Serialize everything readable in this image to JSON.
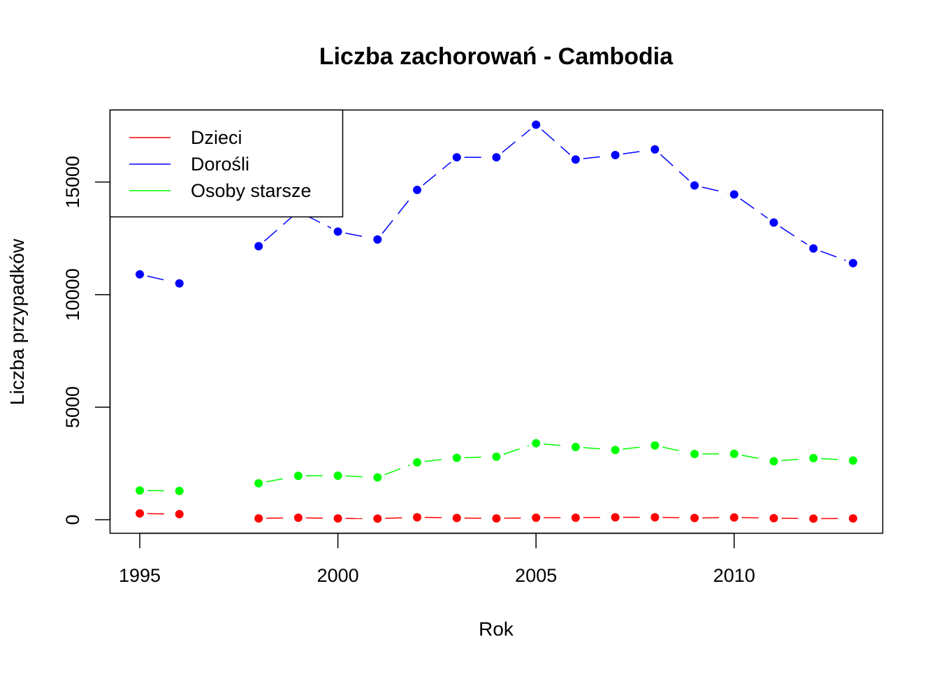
{
  "chart_data": {
    "type": "line",
    "title": "Liczba zachorowań -  Cambodia",
    "xlabel": "Rok",
    "ylabel": "Liczba przypadków",
    "xlim": [
      1994.25,
      2013.75
    ],
    "ylim": [
      -600,
      18200
    ],
    "x_ticks": [
      {
        "value": 1995,
        "label": "1995"
      },
      {
        "value": 2000,
        "label": "2000"
      },
      {
        "value": 2005,
        "label": "2005"
      },
      {
        "value": 2010,
        "label": "2010"
      }
    ],
    "y_ticks": [
      {
        "value": 0,
        "label": "0"
      },
      {
        "value": 5000,
        "label": "5000"
      },
      {
        "value": 10000,
        "label": "10000"
      },
      {
        "value": 15000,
        "label": "15000"
      }
    ],
    "grid": false,
    "legend_position": "top-left",
    "line_style": "dashed",
    "x": [
      1995,
      1996,
      1997,
      1998,
      1999,
      2000,
      2001,
      2002,
      2003,
      2004,
      2005,
      2006,
      2007,
      2008,
      2009,
      2010,
      2011,
      2012,
      2013
    ],
    "series": [
      {
        "name": "Dzieci",
        "color": "#ff0000",
        "values": [
          280,
          250,
          null,
          60,
          90,
          60,
          50,
          110,
          80,
          60,
          90,
          90,
          110,
          110,
          80,
          100,
          70,
          50,
          60
        ]
      },
      {
        "name": "Dorośli",
        "color": "#0000ff",
        "values": [
          10900,
          10500,
          null,
          12150,
          13700,
          12800,
          12450,
          14650,
          16100,
          16100,
          17550,
          16000,
          16200,
          16450,
          14850,
          14450,
          13200,
          12050,
          11400
        ]
      },
      {
        "name": "Osoby starsze",
        "color": "#00ff00",
        "values": [
          1300,
          1280,
          null,
          1620,
          1950,
          1960,
          1880,
          2550,
          2750,
          2800,
          3400,
          3230,
          3100,
          3300,
          2920,
          2930,
          2600,
          2740,
          2630
        ]
      }
    ]
  }
}
